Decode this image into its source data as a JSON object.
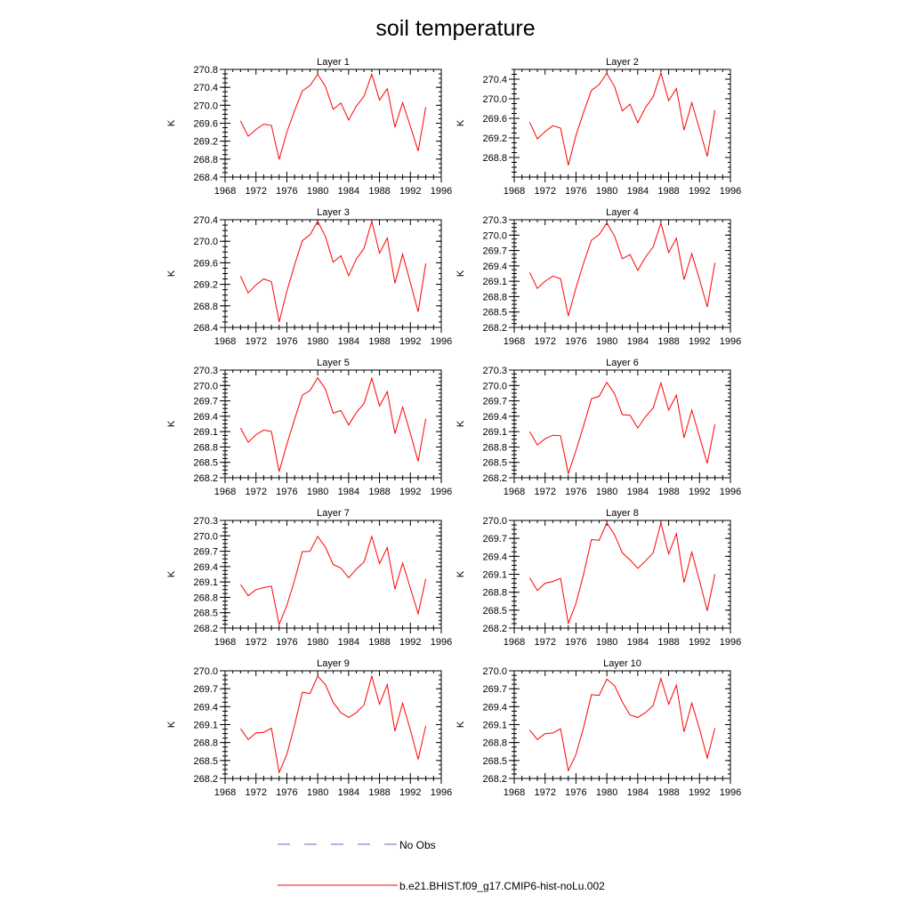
{
  "title": "soil temperature",
  "colors": {
    "model": "#ff0000",
    "obs": "#5b6bd6"
  },
  "legend": [
    {
      "label": "No Obs",
      "style": "dashed",
      "color": "#5b6bd6"
    },
    {
      "label": "b.e21.BHIST.f09_g17.CMIP6-hist-noLu.002",
      "style": "solid",
      "color": "#ff0000"
    }
  ],
  "chart_data": [
    {
      "type": "line",
      "title": "Layer 1",
      "ylabel": "K",
      "xlim": [
        1968,
        1996
      ],
      "xticks": [
        1968,
        1972,
        1976,
        1980,
        1984,
        1988,
        1992,
        1996
      ],
      "ylim": [
        268.4,
        270.8
      ],
      "yticks": [
        268.4,
        268.8,
        269.2,
        269.6,
        270.0,
        270.4,
        270.8
      ],
      "decimals": 1,
      "series": [
        {
          "name": "b.e21.BHIST.f09_g17.CMIP6-hist-noLu.002",
          "x": [
            1970,
            1971,
            1972,
            1973,
            1974,
            1975,
            1976,
            1977,
            1978,
            1979,
            1980,
            1981,
            1982,
            1983,
            1984,
            1985,
            1986,
            1987,
            1988,
            1989,
            1990,
            1991,
            1992,
            1993,
            1994
          ],
          "values": [
            269.65,
            269.31,
            269.46,
            269.58,
            269.55,
            268.79,
            269.4,
            269.88,
            270.32,
            270.44,
            270.69,
            270.42,
            269.91,
            270.05,
            269.67,
            269.98,
            270.2,
            270.69,
            270.12,
            270.37,
            269.51,
            270.06,
            269.53,
            268.98,
            269.96
          ]
        }
      ]
    },
    {
      "type": "line",
      "title": "Layer 2",
      "ylabel": "K",
      "xlim": [
        1968,
        1996
      ],
      "xticks": [
        1968,
        1972,
        1976,
        1980,
        1984,
        1988,
        1992,
        1996
      ],
      "ylim": [
        268.4,
        270.6
      ],
      "yticks": [
        268.8,
        269.2,
        269.6,
        270.0,
        270.4
      ],
      "decimals": 1,
      "series": [
        {
          "name": "b.e21.BHIST.f09_g17.CMIP6-hist-noLu.002",
          "x": [
            1970,
            1971,
            1972,
            1973,
            1974,
            1975,
            1976,
            1977,
            1978,
            1979,
            1980,
            1981,
            1982,
            1983,
            1984,
            1985,
            1986,
            1987,
            1988,
            1989,
            1990,
            1991,
            1992,
            1993,
            1994
          ],
          "values": [
            269.52,
            269.18,
            269.33,
            269.45,
            269.4,
            268.64,
            269.25,
            269.73,
            270.17,
            270.29,
            270.52,
            270.25,
            269.75,
            269.89,
            269.51,
            269.82,
            270.04,
            270.53,
            269.96,
            270.21,
            269.36,
            269.92,
            269.38,
            268.82,
            269.77
          ]
        }
      ]
    },
    {
      "type": "line",
      "title": "Layer 3",
      "ylabel": "K",
      "xlim": [
        1968,
        1996
      ],
      "xticks": [
        1968,
        1972,
        1976,
        1980,
        1984,
        1988,
        1992,
        1996
      ],
      "ylim": [
        268.4,
        270.4
      ],
      "yticks": [
        268.4,
        268.8,
        269.2,
        269.6,
        270.0,
        270.4
      ],
      "decimals": 1,
      "series": [
        {
          "name": "b.e21.BHIST.f09_g17.CMIP6-hist-noLu.002",
          "x": [
            1970,
            1971,
            1972,
            1973,
            1974,
            1975,
            1976,
            1977,
            1978,
            1979,
            1980,
            1981,
            1982,
            1983,
            1984,
            1985,
            1986,
            1987,
            1988,
            1989,
            1990,
            1991,
            1992,
            1993,
            1994
          ],
          "values": [
            269.35,
            269.04,
            269.19,
            269.3,
            269.25,
            268.5,
            269.07,
            269.56,
            270.01,
            270.12,
            270.37,
            270.09,
            269.61,
            269.73,
            269.36,
            269.67,
            269.87,
            270.37,
            269.78,
            270.06,
            269.22,
            269.76,
            269.23,
            268.69,
            269.59
          ]
        }
      ]
    },
    {
      "type": "line",
      "title": "Layer 4",
      "ylabel": "K",
      "xlim": [
        1968,
        1996
      ],
      "xticks": [
        1968,
        1972,
        1976,
        1980,
        1984,
        1988,
        1992,
        1996
      ],
      "ylim": [
        268.2,
        270.3
      ],
      "yticks": [
        268.2,
        268.5,
        268.8,
        269.1,
        269.4,
        269.7,
        270.0,
        270.3
      ],
      "decimals": 1,
      "series": [
        {
          "name": "b.e21.BHIST.f09_g17.CMIP6-hist-noLu.002",
          "x": [
            1970,
            1971,
            1972,
            1973,
            1974,
            1975,
            1976,
            1977,
            1978,
            1979,
            1980,
            1981,
            1982,
            1983,
            1984,
            1985,
            1986,
            1987,
            1988,
            1989,
            1990,
            1991,
            1992,
            1993,
            1994
          ],
          "values": [
            269.27,
            268.96,
            269.1,
            269.2,
            269.15,
            268.42,
            268.97,
            269.46,
            269.9,
            270.01,
            270.24,
            269.98,
            269.54,
            269.62,
            269.31,
            269.57,
            269.77,
            270.24,
            269.66,
            269.94,
            269.13,
            269.64,
            269.13,
            268.6,
            269.46
          ]
        }
      ]
    },
    {
      "type": "line",
      "title": "Layer 5",
      "ylabel": "K",
      "xlim": [
        1968,
        1996
      ],
      "xticks": [
        1968,
        1972,
        1976,
        1980,
        1984,
        1988,
        1992,
        1996
      ],
      "ylim": [
        268.2,
        270.3
      ],
      "yticks": [
        268.2,
        268.5,
        268.8,
        269.1,
        269.4,
        269.7,
        270.0,
        270.3
      ],
      "decimals": 1,
      "series": [
        {
          "name": "b.e21.BHIST.f09_g17.CMIP6-hist-noLu.002",
          "x": [
            1970,
            1971,
            1972,
            1973,
            1974,
            1975,
            1976,
            1977,
            1978,
            1979,
            1980,
            1981,
            1982,
            1983,
            1984,
            1985,
            1986,
            1987,
            1988,
            1989,
            1990,
            1991,
            1992,
            1993,
            1994
          ],
          "values": [
            269.17,
            268.89,
            269.04,
            269.13,
            269.1,
            268.32,
            268.85,
            269.34,
            269.81,
            269.9,
            270.15,
            269.93,
            269.46,
            269.51,
            269.23,
            269.47,
            269.65,
            270.14,
            269.6,
            269.88,
            269.06,
            269.58,
            269.06,
            268.52,
            269.35
          ]
        }
      ]
    },
    {
      "type": "line",
      "title": "Layer 6",
      "ylabel": "K",
      "xlim": [
        1968,
        1996
      ],
      "xticks": [
        1968,
        1972,
        1976,
        1980,
        1984,
        1988,
        1992,
        1996
      ],
      "ylim": [
        268.2,
        270.3
      ],
      "yticks": [
        268.2,
        268.5,
        268.8,
        269.1,
        269.4,
        269.7,
        270.0,
        270.3
      ],
      "decimals": 1,
      "series": [
        {
          "name": "b.e21.BHIST.f09_g17.CMIP6-hist-noLu.002",
          "x": [
            1970,
            1971,
            1972,
            1973,
            1974,
            1975,
            1976,
            1977,
            1978,
            1979,
            1980,
            1981,
            1982,
            1983,
            1984,
            1985,
            1986,
            1987,
            1988,
            1989,
            1990,
            1991,
            1992,
            1993,
            1994
          ],
          "values": [
            269.1,
            268.84,
            268.96,
            269.03,
            269.02,
            268.28,
            268.73,
            269.22,
            269.74,
            269.79,
            270.06,
            269.84,
            269.43,
            269.42,
            269.17,
            269.39,
            269.56,
            270.05,
            269.52,
            269.81,
            268.98,
            269.52,
            269.0,
            268.48,
            269.24
          ]
        }
      ]
    },
    {
      "type": "line",
      "title": "Layer 7",
      "ylabel": "K",
      "xlim": [
        1968,
        1996
      ],
      "xticks": [
        1968,
        1972,
        1976,
        1980,
        1984,
        1988,
        1992,
        1996
      ],
      "ylim": [
        268.2,
        270.3
      ],
      "yticks": [
        268.2,
        268.5,
        268.8,
        269.1,
        269.4,
        269.7,
        270.0,
        270.3
      ],
      "decimals": 1,
      "series": [
        {
          "name": "b.e21.BHIST.f09_g17.CMIP6-hist-noLu.002",
          "x": [
            1970,
            1971,
            1972,
            1973,
            1974,
            1975,
            1976,
            1977,
            1978,
            1979,
            1980,
            1981,
            1982,
            1983,
            1984,
            1985,
            1986,
            1987,
            1988,
            1989,
            1990,
            1991,
            1992,
            1993,
            1994
          ],
          "values": [
            269.05,
            268.83,
            268.95,
            268.99,
            269.02,
            268.27,
            268.64,
            269.13,
            269.69,
            269.7,
            269.99,
            269.78,
            269.44,
            269.37,
            269.18,
            269.35,
            269.49,
            269.99,
            269.46,
            269.77,
            268.96,
            269.47,
            268.98,
            268.48,
            269.16
          ]
        }
      ]
    },
    {
      "type": "line",
      "title": "Layer 8",
      "ylabel": "K",
      "xlim": [
        1968,
        1996
      ],
      "xticks": [
        1968,
        1972,
        1976,
        1980,
        1984,
        1988,
        1992,
        1996
      ],
      "ylim": [
        268.2,
        270.0
      ],
      "yticks": [
        268.2,
        268.5,
        268.8,
        269.1,
        269.4,
        269.7,
        270.0
      ],
      "decimals": 1,
      "series": [
        {
          "name": "b.e21.BHIST.f09_g17.CMIP6-hist-noLu.002",
          "x": [
            1970,
            1971,
            1972,
            1973,
            1974,
            1975,
            1976,
            1977,
            1978,
            1979,
            1980,
            1981,
            1982,
            1983,
            1984,
            1985,
            1986,
            1987,
            1988,
            1989,
            1990,
            1991,
            1992,
            1993,
            1994
          ],
          "values": [
            269.04,
            268.83,
            268.95,
            268.98,
            269.03,
            268.28,
            268.61,
            269.11,
            269.68,
            269.67,
            269.96,
            269.76,
            269.46,
            269.34,
            269.2,
            269.32,
            269.46,
            269.96,
            269.44,
            269.78,
            268.96,
            269.47,
            268.99,
            268.49,
            269.1
          ]
        }
      ]
    },
    {
      "type": "line",
      "title": "Layer 9",
      "ylabel": "K",
      "xlim": [
        1968,
        1996
      ],
      "xticks": [
        1968,
        1972,
        1976,
        1980,
        1984,
        1988,
        1992,
        1996
      ],
      "ylim": [
        268.2,
        270.0
      ],
      "yticks": [
        268.2,
        268.5,
        268.8,
        269.1,
        269.4,
        269.7,
        270.0
      ],
      "decimals": 1,
      "series": [
        {
          "name": "b.e21.BHIST.f09_g17.CMIP6-hist-noLu.002",
          "x": [
            1970,
            1971,
            1972,
            1973,
            1974,
            1975,
            1976,
            1977,
            1978,
            1979,
            1980,
            1981,
            1982,
            1983,
            1984,
            1985,
            1986,
            1987,
            1988,
            1989,
            1990,
            1991,
            1992,
            1993,
            1994
          ],
          "values": [
            269.03,
            268.85,
            268.96,
            268.97,
            269.04,
            268.3,
            268.6,
            269.09,
            269.64,
            269.62,
            269.91,
            269.77,
            269.47,
            269.3,
            269.22,
            269.3,
            269.43,
            269.91,
            269.44,
            269.77,
            268.99,
            269.46,
            269.01,
            268.52,
            269.08
          ]
        }
      ]
    },
    {
      "type": "line",
      "title": "Layer 10",
      "ylabel": "K",
      "xlim": [
        1968,
        1996
      ],
      "xticks": [
        1968,
        1972,
        1976,
        1980,
        1984,
        1988,
        1992,
        1996
      ],
      "ylim": [
        268.2,
        270.0
      ],
      "yticks": [
        268.2,
        268.5,
        268.8,
        269.1,
        269.4,
        269.7,
        270.0
      ],
      "decimals": 1,
      "series": [
        {
          "name": "b.e21.BHIST.f09_g17.CMIP6-hist-noLu.002",
          "x": [
            1970,
            1971,
            1972,
            1973,
            1974,
            1975,
            1976,
            1977,
            1978,
            1979,
            1980,
            1981,
            1982,
            1983,
            1984,
            1985,
            1986,
            1987,
            1988,
            1989,
            1990,
            1991,
            1992,
            1993,
            1994
          ],
          "values": [
            269.01,
            268.85,
            268.95,
            268.96,
            269.03,
            268.33,
            268.6,
            269.06,
            269.6,
            269.59,
            269.86,
            269.75,
            269.48,
            269.26,
            269.22,
            269.3,
            269.42,
            269.87,
            269.44,
            269.76,
            268.98,
            269.46,
            269.03,
            268.54,
            269.04
          ]
        }
      ]
    }
  ]
}
